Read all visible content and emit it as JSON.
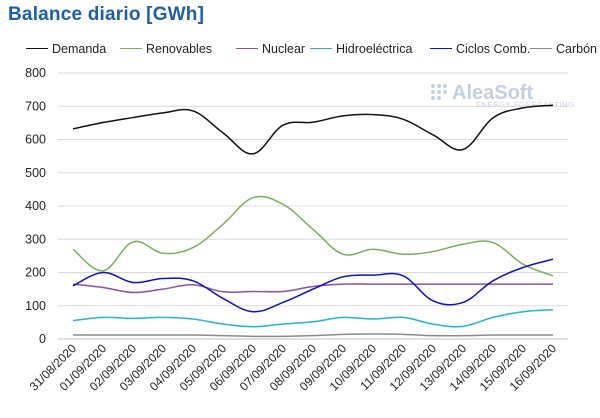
{
  "title": "Balance diario [GWh]",
  "logo": {
    "name": "AleaSoft",
    "tagline": "ENERGY FORECASTING"
  },
  "chart_data": {
    "type": "line",
    "title": "Balance diario [GWh]",
    "xlabel": "",
    "ylabel": "",
    "ylim": [
      0,
      800
    ],
    "yticks": [
      0,
      100,
      200,
      300,
      400,
      500,
      600,
      700,
      800
    ],
    "grid": "horizontal",
    "legend_position": "top",
    "x": [
      "31/08/2020",
      "01/09/2020",
      "02/09/2020",
      "03/09/2020",
      "04/09/2020",
      "05/09/2020",
      "06/09/2020",
      "07/09/2020",
      "08/09/2020",
      "09/09/2020",
      "10/09/2020",
      "11/09/2020",
      "12/09/2020",
      "13/09/2020",
      "14/09/2020",
      "15/09/2020",
      "16/09/2020"
    ],
    "series": [
      {
        "name": "Demanda",
        "color": "#111111",
        "values": [
          632,
          651,
          666,
          680,
          686,
          620,
          557,
          643,
          652,
          671,
          675,
          661,
          614,
          570,
          665,
          695,
          703
        ]
      },
      {
        "name": "Renovables",
        "color": "#77b255",
        "values": [
          270,
          205,
          292,
          258,
          275,
          345,
          425,
          405,
          330,
          255,
          270,
          255,
          263,
          285,
          290,
          225,
          190
        ]
      },
      {
        "name": "Nuclear",
        "color": "#8e4fa6",
        "values": [
          165,
          155,
          140,
          150,
          163,
          142,
          143,
          143,
          158,
          165,
          165,
          165,
          165,
          165,
          165,
          165,
          165
        ]
      },
      {
        "name": "Hidroeléctrica",
        "color": "#1fb6d6",
        "values": [
          55,
          65,
          62,
          65,
          60,
          45,
          37,
          45,
          52,
          65,
          60,
          65,
          45,
          38,
          65,
          82,
          88
        ]
      },
      {
        "name": "Ciclos Comb.",
        "color": "#1010c8",
        "values": [
          160,
          200,
          170,
          182,
          175,
          122,
          82,
          110,
          150,
          187,
          192,
          190,
          115,
          110,
          175,
          215,
          240
        ]
      },
      {
        "name": "Carbón",
        "color": "#8a8a8a",
        "values": [
          12,
          12,
          12,
          12,
          12,
          10,
          8,
          8,
          10,
          14,
          15,
          14,
          10,
          10,
          12,
          12,
          12
        ]
      }
    ]
  }
}
